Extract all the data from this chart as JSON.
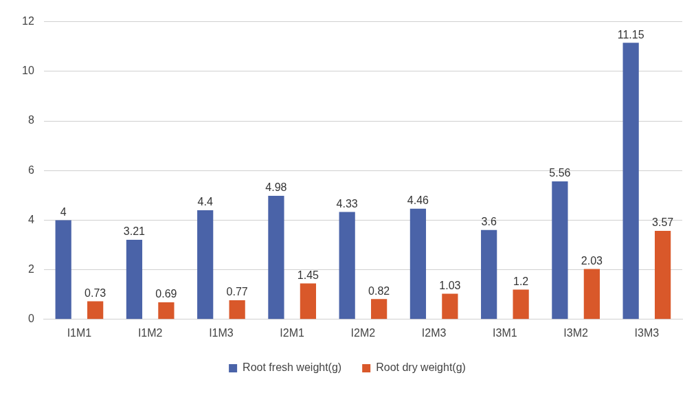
{
  "chart_data": {
    "type": "bar",
    "categories": [
      "I1M1",
      "I1M2",
      "I1M3",
      "I2M1",
      "I2M2",
      "I2M3",
      "I3M1",
      "I3M2",
      "I3M3"
    ],
    "series": [
      {
        "name": "Root fresh weight(g)",
        "color": "#4a63a8",
        "values": [
          4,
          3.21,
          4.4,
          4.98,
          4.33,
          4.46,
          3.6,
          5.56,
          11.15
        ]
      },
      {
        "name": "Root dry weight(g)",
        "color": "#d9582a",
        "values": [
          0.73,
          0.69,
          0.77,
          1.45,
          0.82,
          1.03,
          1.2,
          2.03,
          3.57
        ]
      }
    ],
    "ylim": [
      0,
      12
    ],
    "yticks": [
      0,
      2,
      4,
      6,
      8,
      10,
      12
    ],
    "grid": "y",
    "legend": "bottom",
    "data_labels": true
  }
}
